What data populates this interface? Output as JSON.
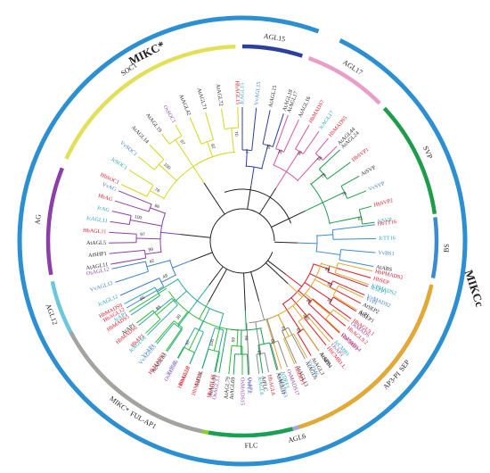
{
  "figure": {
    "outer_arcs": [
      {
        "label": "MIKC*",
        "color": "#2b8fd1",
        "from": 180,
        "to": 290
      },
      {
        "label": "MIKCc",
        "color": "#2b8fd1",
        "from": 296,
        "to": 540
      }
    ],
    "subgroups": [
      {
        "label": "SEP",
        "color": "#d8192a",
        "from": 375,
        "to": 420
      },
      {
        "label": "AGL6",
        "color": "#a7a7d7",
        "from": 422,
        "to": 447
      },
      {
        "label": "FUL-AP1",
        "color": "#8ccf2e",
        "from": 450,
        "to": 508
      },
      {
        "label": "AGL12",
        "color": "#6cc6dd",
        "from": 510,
        "to": 528
      },
      {
        "label": "AG",
        "color": "#8c3fa6",
        "from": 530,
        "to": 562
      },
      {
        "label": "SOC1",
        "color": "#e2e05b",
        "from": 565,
        "to": 628
      },
      {
        "label": "AGL15",
        "color": "#2c3f9e",
        "from": 630,
        "to": 648
      },
      {
        "label": "AGL17",
        "color": "#e79fc9",
        "from": 650,
        "to": 675
      },
      {
        "label": "SVP",
        "color": "#1e9c4a",
        "from": 677,
        "to": 712
      },
      {
        "label": "BS",
        "color": "#3c8bd0",
        "from": 713,
        "to": 731
      },
      {
        "label": "AP3-PI",
        "color": "#e1aa32",
        "from": 733,
        "to": 793
      },
      {
        "label": "FLC",
        "color": "#1aa055",
        "from": 795,
        "to": 820
      },
      {
        "label": "MIKC*",
        "color": "#a3a3a3",
        "from": 822,
        "to": 872
      }
    ],
    "clades": [
      {
        "color": "#d8192a",
        "from": 376,
        "to": 419,
        "labels": [
          {
            "t": "HbSEP",
            "c": "#d8192a"
          },
          {
            "t": "JcSEP1",
            "c": "#1fa5b3"
          },
          {
            "t": "VvMADS2",
            "c": "#3f7fc6"
          },
          {
            "t": "AtSEP2",
            "c": "#222222"
          },
          {
            "t": "AtSEP1",
            "c": "#222222"
          },
          {
            "t": "HbAGL9.1",
            "c": "#d8192a"
          },
          {
            "t": "HbAGL9.2",
            "c": "#d8192a"
          },
          {
            "t": "HbCMB1",
            "c": "#d8192a"
          },
          {
            "t": "JcCMB1",
            "c": "#1fa5b3"
          },
          {
            "t": "HbCMB1.L",
            "c": "#d8192a"
          },
          {
            "t": "AtSEP4",
            "c": "#222222"
          },
          {
            "t": "AtAGL3",
            "c": "#222222"
          }
        ]
      },
      {
        "color": "#8a8a8a",
        "from": 422,
        "to": 447,
        "labels": [
          {
            "t": "AtAGL6",
            "c": "#222222"
          },
          {
            "t": "AtAGL13",
            "c": "#222222"
          },
          {
            "t": "OsMADS17",
            "c": "#8c3fa6"
          },
          {
            "t": "VvMADS3",
            "c": "#3f7fc6"
          },
          {
            "t": "HbAGL6",
            "c": "#d8192a"
          },
          {
            "t": "JcAGL6",
            "c": "#1fa5b3"
          },
          {
            "t": "OsAP1",
            "c": "#8c3fa6"
          }
        ]
      },
      {
        "color": "#2fbd2f",
        "from": 450,
        "to": 508,
        "labels": [
          {
            "t": "OsMADS15",
            "c": "#8c3fa6"
          },
          {
            "t": "AtAGL79",
            "c": "#222222"
          },
          {
            "t": "AtAGL10",
            "c": "#222222"
          },
          {
            "t": "AtFUL",
            "c": "#222222"
          },
          {
            "t": "HbAGL8",
            "c": "#d8192a"
          },
          {
            "t": "VvFUL",
            "c": "#3f7fc6"
          },
          {
            "t": "HbMADS3",
            "c": "#d8192a"
          },
          {
            "t": "VvAP1",
            "c": "#3f7fc6"
          },
          {
            "t": "HbAP1",
            "c": "#d8192a"
          },
          {
            "t": "AtAP1",
            "c": "#222222"
          },
          {
            "t": "JcAP1",
            "c": "#1fa5b3"
          }
        ]
      },
      {
        "color": "#3f7fc6",
        "from": 510,
        "to": 528,
        "labels": [
          {
            "t": "HbAGL12",
            "c": "#d8192a"
          },
          {
            "t": "JcAGL12",
            "c": "#1fa5b3"
          },
          {
            "t": "VvAGL12",
            "c": "#3f7fc6"
          },
          {
            "t": "OsAGL12",
            "c": "#8c3fa6"
          }
        ]
      },
      {
        "color": "#8c3fa6",
        "from": 530,
        "to": 562,
        "labels": [
          {
            "t": "AtAGL11",
            "c": "#222222"
          },
          {
            "t": "AtSHP1",
            "c": "#222222"
          },
          {
            "t": "AtAGL5",
            "c": "#222222"
          },
          {
            "t": "HbAGL11",
            "c": "#d8192a"
          },
          {
            "t": "JcAGL11",
            "c": "#1fa5b3"
          },
          {
            "t": "JcAG",
            "c": "#1fa5b3"
          },
          {
            "t": "HbAG",
            "c": "#d8192a"
          },
          {
            "t": "VvAG",
            "c": "#3f7fc6"
          }
        ]
      },
      {
        "color": "#d7d41f",
        "from": 565,
        "to": 628,
        "labels": [
          {
            "t": "HbSOC1",
            "c": "#d8192a"
          },
          {
            "t": "JcSOC1",
            "c": "#1fa5b3"
          },
          {
            "t": "VvSOC1",
            "c": "#3f7fc6"
          },
          {
            "t": "AtAGL14",
            "c": "#222222"
          },
          {
            "t": "AtAGL19",
            "c": "#222222"
          },
          {
            "t": "OsSOC1",
            "c": "#8c3fa6"
          },
          {
            "t": "AtAGL42",
            "c": "#222222"
          },
          {
            "t": "AtAGL71",
            "c": "#222222"
          },
          {
            "t": "AtAGL72",
            "c": "#222222"
          },
          {
            "t": "HbAGL15",
            "c": "#d8192a"
          }
        ]
      },
      {
        "color": "#2c3f9e",
        "from": 630,
        "to": 648,
        "labels": [
          {
            "t": "JcAGL15",
            "c": "#1fa5b3"
          },
          {
            "t": "VvAGL15",
            "c": "#3f7fc6"
          },
          {
            "t": "AtAGL15",
            "c": "#222222"
          },
          {
            "t": "AtAGL18",
            "c": "#222222"
          }
        ]
      },
      {
        "color": "#d454a8",
        "from": 650,
        "to": 675,
        "labels": [
          {
            "t": "AtAGL17",
            "c": "#222222"
          },
          {
            "t": "AtAGL16",
            "c": "#222222"
          },
          {
            "t": "HbMADS7",
            "c": "#d8192a"
          },
          {
            "t": "JcAGL17",
            "c": "#1fa5b3"
          },
          {
            "t": "HbMADS5",
            "c": "#d8192a"
          },
          {
            "t": "AtAGL44",
            "c": "#222222"
          }
        ]
      },
      {
        "color": "#1e9c4a",
        "from": 677,
        "to": 712,
        "labels": [
          {
            "t": "AtAGL24",
            "c": "#222222"
          },
          {
            "t": "HbSVP1",
            "c": "#d8192a"
          },
          {
            "t": "AtSVP",
            "c": "#222222"
          },
          {
            "t": "VvSVP",
            "c": "#3f7fc6"
          },
          {
            "t": "HbSVP2",
            "c": "#d8192a"
          },
          {
            "t": "JcSVP",
            "c": "#1fa5b3"
          }
        ]
      },
      {
        "color": "#3c8bd0",
        "from": 713,
        "to": 731,
        "labels": [
          {
            "t": "HbTT16",
            "c": "#d8192a"
          },
          {
            "t": "JcTT16",
            "c": "#1fa5b3"
          },
          {
            "t": "VvBS1",
            "c": "#3f7fc6"
          },
          {
            "t": "AtABS",
            "c": "#222222"
          }
        ]
      },
      {
        "color": "#e1aa32",
        "from": 733,
        "to": 793,
        "labels": [
          {
            "t": "HbPMADS2",
            "c": "#d8192a"
          },
          {
            "t": "JcPMADS2",
            "c": "#1fa5b3"
          },
          {
            "t": "VvPI",
            "c": "#3f7fc6"
          },
          {
            "t": "AtPI",
            "c": "#222222"
          },
          {
            "t": "OsMADS",
            "c": "#8c3fa6"
          },
          {
            "t": "OsMADS4",
            "c": "#8c3fa6"
          },
          {
            "t": "OsAP3",
            "c": "#8c3fa6"
          },
          {
            "t": "AtAP3",
            "c": "#222222"
          },
          {
            "t": "VvTM6",
            "c": "#3f7fc6"
          },
          {
            "t": "HbDEF1",
            "c": "#d8192a"
          },
          {
            "t": "JcDEF1",
            "c": "#1fa5b3"
          }
        ]
      },
      {
        "color": "#1aa055",
        "from": 795,
        "to": 820,
        "labels": [
          {
            "t": "AtAGL31",
            "c": "#222222"
          },
          {
            "t": "AtFLC",
            "c": "#222222"
          },
          {
            "t": "VvFLC",
            "c": "#3f7fc6"
          },
          {
            "t": "AtAGL69",
            "c": "#222222"
          },
          {
            "t": "OsAGL3.1",
            "c": "#8c3fa6"
          }
        ]
      },
      {
        "color": "#2ca7a0",
        "from": 822,
        "to": 872,
        "labels": [
          {
            "t": "HbAGL66",
            "c": "#d8192a"
          },
          {
            "t": "HbMADS1",
            "c": "#d8192a"
          },
          {
            "t": "HbAGL30",
            "c": "#d8192a"
          },
          {
            "t": "OsAGL65",
            "c": "#8c3fa6"
          },
          {
            "t": "AtAGL65",
            "c": "#222222"
          },
          {
            "t": "VvAGL65",
            "c": "#3f7fc6"
          },
          {
            "t": "JcAGL66",
            "c": "#1fa5b3"
          },
          {
            "t": "HbMADS6",
            "c": "#d8192a"
          },
          {
            "t": "HbMADS5",
            "c": "#d8192a"
          },
          {
            "t": "HbMADS9",
            "c": "#d8192a"
          }
        ]
      }
    ],
    "bootstraps": [
      "99",
      "82",
      "95",
      "88",
      "100",
      "64",
      "61",
      "60",
      "97",
      "99",
      "59",
      "100",
      "97",
      "38",
      "86",
      "65",
      "49",
      "42",
      "99",
      "97",
      "100",
      "86",
      "76",
      "100",
      "97",
      "92",
      "70",
      "77",
      "95",
      "35",
      "96",
      "56",
      "78",
      "78",
      "61"
    ]
  }
}
